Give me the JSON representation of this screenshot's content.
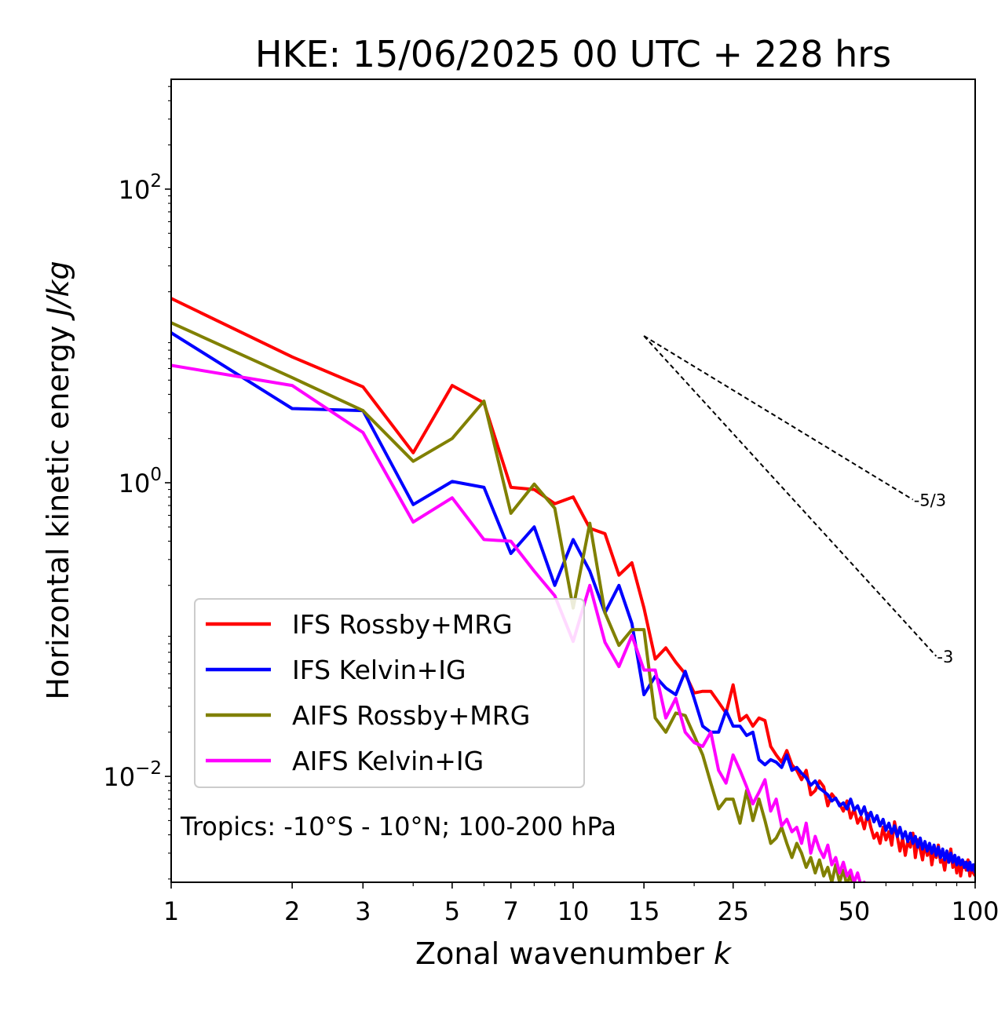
{
  "chart_data": {
    "type": "line",
    "title": "HKE: 15/06/2025 00 UTC + 228 hrs",
    "xlabel": "Zonal wavenumber k",
    "ylabel": "Horizontal kinetic energy J/kg",
    "xscale": "log",
    "yscale": "log",
    "xlim": [
      1,
      100
    ],
    "ylim": [
      0.0019,
      560
    ],
    "grid": false,
    "legend_position": "lower-left",
    "xticks": [
      {
        "value": 1,
        "label": "1"
      },
      {
        "value": 2,
        "label": "2"
      },
      {
        "value": 3,
        "label": "3"
      },
      {
        "value": 5,
        "label": "5"
      },
      {
        "value": 7,
        "label": "7"
      },
      {
        "value": 10,
        "label": "10"
      },
      {
        "value": 15,
        "label": "15"
      },
      {
        "value": 25,
        "label": "25"
      },
      {
        "value": 50,
        "label": "50"
      },
      {
        "value": 100,
        "label": "100"
      }
    ],
    "yticks": [
      {
        "value": 100,
        "base": "10",
        "exp": "2"
      },
      {
        "value": 1,
        "base": "10",
        "exp": "0"
      },
      {
        "value": 0.01,
        "base": "10",
        "exp": "−2"
      }
    ],
    "annotation": "Tropics: -10°S - 10°N; 100-200 hPa",
    "reference_slopes": [
      {
        "label": "-5/3",
        "exponent": -1.6667,
        "x_start": 15,
        "x_end": 70,
        "y_start": 10
      },
      {
        "label": "-3",
        "exponent": -3,
        "x_start": 15,
        "x_end": 80,
        "y_start": 10
      }
    ],
    "series": [
      {
        "name": "IFS Rossby+MRG",
        "color": "#ff0000",
        "x": [
          1,
          2,
          3,
          4,
          5,
          6,
          7,
          8,
          9,
          10,
          11,
          12,
          13,
          14,
          15,
          16,
          17,
          18,
          19,
          20,
          21,
          22,
          23,
          24,
          25,
          26,
          27,
          28,
          29,
          30,
          31,
          32,
          33,
          34,
          35,
          36,
          37,
          38,
          39,
          40,
          41,
          42,
          43,
          44,
          45,
          46,
          47,
          48,
          49,
          50,
          51,
          52,
          53,
          54,
          55,
          56,
          57,
          58,
          59,
          60,
          61,
          62,
          63,
          64,
          65,
          66,
          67,
          68,
          69,
          70,
          71,
          72,
          73,
          74,
          75,
          76,
          77,
          78,
          79,
          80,
          81,
          82,
          83,
          84,
          85,
          86,
          87,
          88,
          89,
          90,
          91,
          92,
          93,
          94,
          95,
          96,
          97,
          98,
          99,
          100
        ],
        "y": [
          18,
          7.2,
          4.5,
          1.6,
          4.6,
          3.5,
          0.93,
          0.9,
          0.72,
          0.8,
          0.49,
          0.45,
          0.235,
          0.285,
          0.14,
          0.063,
          0.075,
          0.06,
          0.05,
          0.037,
          0.038,
          0.038,
          0.032,
          0.027,
          0.042,
          0.024,
          0.026,
          0.022,
          0.025,
          0.024,
          0.016,
          0.014,
          0.0125,
          0.015,
          0.012,
          0.011,
          0.0095,
          0.011,
          0.0075,
          0.008,
          0.0093,
          0.0085,
          0.0063,
          0.0076,
          0.007,
          0.0065,
          0.0058,
          0.0068,
          0.0052,
          0.006,
          0.0048,
          0.0053,
          0.0044,
          0.0056,
          0.0045,
          0.0038,
          0.0041,
          0.0035,
          0.0045,
          0.0037,
          0.0042,
          0.0034,
          0.0049,
          0.0039,
          0.0031,
          0.0038,
          0.0029,
          0.0036,
          0.0033,
          0.0041,
          0.0028,
          0.0037,
          0.0032,
          0.0027,
          0.0035,
          0.0029,
          0.0033,
          0.0025,
          0.0031,
          0.0028,
          0.0034,
          0.0026,
          0.0027,
          0.0023,
          0.0029,
          0.0026,
          0.0032,
          0.0024,
          0.0027,
          0.0022,
          0.0028,
          0.0021,
          0.0025,
          0.0026,
          0.0023,
          0.0027,
          0.0021,
          0.0024,
          0.0022,
          0.0021
        ]
      },
      {
        "name": "IFS Kelvin+IG",
        "color": "#0000ff",
        "x": [
          1,
          2,
          3,
          4,
          5,
          6,
          7,
          8,
          9,
          10,
          11,
          12,
          13,
          14,
          15,
          16,
          17,
          18,
          19,
          20,
          21,
          22,
          23,
          24,
          25,
          26,
          27,
          28,
          29,
          30,
          31,
          32,
          33,
          34,
          35,
          36,
          37,
          38,
          39,
          40,
          41,
          42,
          43,
          44,
          45,
          46,
          47,
          48,
          49,
          50,
          51,
          52,
          53,
          54,
          55,
          56,
          57,
          58,
          59,
          60,
          61,
          62,
          63,
          64,
          65,
          66,
          67,
          68,
          69,
          70,
          71,
          72,
          73,
          74,
          75,
          76,
          77,
          78,
          79,
          80,
          81,
          82,
          83,
          84,
          85,
          86,
          87,
          88,
          89,
          90,
          91,
          92,
          93,
          94,
          95,
          96,
          97,
          98,
          99,
          100
        ],
        "y": [
          10.5,
          3.2,
          3.1,
          0.71,
          1.02,
          0.93,
          0.33,
          0.5,
          0.2,
          0.41,
          0.25,
          0.13,
          0.2,
          0.11,
          0.036,
          0.048,
          0.04,
          0.036,
          0.052,
          0.034,
          0.022,
          0.02,
          0.02,
          0.028,
          0.022,
          0.022,
          0.019,
          0.02,
          0.013,
          0.012,
          0.013,
          0.0125,
          0.0115,
          0.014,
          0.011,
          0.0115,
          0.0105,
          0.0098,
          0.0087,
          0.0093,
          0.0083,
          0.0079,
          0.0075,
          0.0068,
          0.0071,
          0.0063,
          0.0066,
          0.006,
          0.007,
          0.0059,
          0.0063,
          0.0055,
          0.0062,
          0.0051,
          0.0057,
          0.0049,
          0.0054,
          0.0046,
          0.0051,
          0.0043,
          0.0048,
          0.0041,
          0.0046,
          0.0039,
          0.0045,
          0.0038,
          0.0042,
          0.0036,
          0.0041,
          0.0035,
          0.0039,
          0.0033,
          0.0038,
          0.0032,
          0.0036,
          0.0031,
          0.0035,
          0.003,
          0.0034,
          0.0029,
          0.0033,
          0.0028,
          0.0032,
          0.0027,
          0.0031,
          0.0026,
          0.003,
          0.0026,
          0.0029,
          0.0025,
          0.0028,
          0.0025,
          0.0027,
          0.0024,
          0.0026,
          0.0023,
          0.0026,
          0.0023,
          0.0025,
          0.0022
        ]
      },
      {
        "name": "AIFS Rossby+MRG",
        "color": "#808000",
        "x": [
          1,
          2,
          3,
          4,
          5,
          6,
          7,
          8,
          9,
          10,
          11,
          12,
          13,
          14,
          15,
          16,
          17,
          18,
          19,
          20,
          21,
          22,
          23,
          24,
          25,
          26,
          27,
          28,
          29,
          30,
          31,
          32,
          33,
          34,
          35,
          36,
          37,
          38,
          39,
          40,
          41,
          42,
          43,
          44,
          45,
          46,
          47,
          48,
          49,
          50
        ],
        "y": [
          12.3,
          5.2,
          3.1,
          1.4,
          2.0,
          3.6,
          0.62,
          0.98,
          0.67,
          0.14,
          0.53,
          0.13,
          0.078,
          0.1,
          0.1,
          0.025,
          0.02,
          0.027,
          0.026,
          0.019,
          0.014,
          0.009,
          0.006,
          0.007,
          0.007,
          0.0048,
          0.008,
          0.005,
          0.007,
          0.005,
          0.0035,
          0.0038,
          0.0045,
          0.0035,
          0.0028,
          0.0035,
          0.003,
          0.0024,
          0.0028,
          0.0022,
          0.0027,
          0.0021,
          0.0024,
          0.0019,
          0.0025,
          0.0019,
          0.0023,
          0.0018,
          0.0022,
          0.0016
        ]
      },
      {
        "name": "AIFS Kelvin+IG",
        "color": "#ff00ff",
        "x": [
          1,
          2,
          3,
          4,
          5,
          6,
          7,
          8,
          9,
          10,
          11,
          12,
          13,
          14,
          15,
          16,
          17,
          18,
          19,
          20,
          21,
          22,
          23,
          24,
          25,
          26,
          27,
          28,
          29,
          30,
          31,
          32,
          33,
          34,
          35,
          36,
          37,
          38,
          39,
          40,
          41,
          42,
          43,
          44,
          45,
          46,
          47,
          48,
          49,
          50,
          51,
          52,
          53,
          54
        ],
        "y": [
          6.3,
          4.6,
          2.2,
          0.54,
          0.79,
          0.41,
          0.4,
          0.25,
          0.17,
          0.083,
          0.2,
          0.082,
          0.056,
          0.091,
          0.053,
          0.053,
          0.025,
          0.034,
          0.02,
          0.017,
          0.016,
          0.02,
          0.011,
          0.009,
          0.014,
          0.011,
          0.0085,
          0.0065,
          0.0078,
          0.0095,
          0.0058,
          0.007,
          0.0046,
          0.0051,
          0.0042,
          0.0045,
          0.0035,
          0.0048,
          0.003,
          0.0039,
          0.0032,
          0.0028,
          0.0034,
          0.0025,
          0.0028,
          0.0022,
          0.0026,
          0.0021,
          0.0023,
          0.0019,
          0.0022,
          0.0018,
          0.0019,
          0.0018
        ]
      }
    ]
  }
}
